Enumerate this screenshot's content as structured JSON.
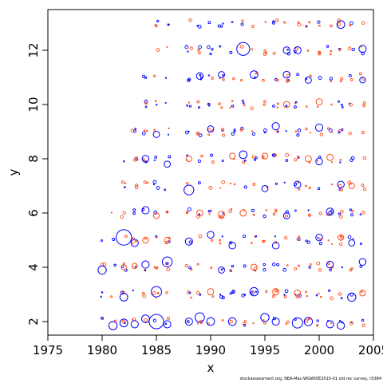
{
  "chart_data": {
    "type": "scatter",
    "title": "",
    "xlabel": "x",
    "ylabel": "y",
    "xlim": [
      1975,
      2005
    ],
    "ylim": [
      1.5,
      13.5
    ],
    "x_ticks": [
      1975,
      1980,
      1985,
      1990,
      1995,
      2000,
      2005
    ],
    "y_ticks": [
      2,
      4,
      6,
      8,
      10,
      12
    ],
    "grid": false,
    "legend": "none",
    "colors": {
      "positive": "#0000ff",
      "negative": "#ff4d1a"
    },
    "marker": "open circle, size proportional to residual magnitude",
    "series": [
      {
        "name": "",
        "color": "#0000ff",
        "points": [
          {
            "x": 1980,
            "y": 3.9,
            "s": 1.0
          },
          {
            "x": 1981,
            "y": 1.85,
            "s": 1.0
          },
          {
            "x": 1982,
            "y": 5.1,
            "s": 2.4
          },
          {
            "x": 1982,
            "y": 2.9,
            "s": 0.9
          },
          {
            "x": 1982,
            "y": 1.95,
            "s": 0.9
          },
          {
            "x": 1983,
            "y": 4.9,
            "s": 0.8
          },
          {
            "x": 1983,
            "y": 1.9,
            "s": 0.8
          },
          {
            "x": 1984,
            "y": 6.1,
            "s": 0.8
          },
          {
            "x": 1984,
            "y": 8.0,
            "s": 0.7
          },
          {
            "x": 1984,
            "y": 4.1,
            "s": 0.8
          },
          {
            "x": 1984,
            "y": 2.1,
            "s": 0.9
          },
          {
            "x": 1985,
            "y": 3.1,
            "s": 1.4
          },
          {
            "x": 1985,
            "y": 2.0,
            "s": 2.2
          },
          {
            "x": 1985,
            "y": 8.9,
            "s": 0.6
          },
          {
            "x": 1986,
            "y": 4.2,
            "s": 1.3
          },
          {
            "x": 1986,
            "y": 1.9,
            "s": 0.8
          },
          {
            "x": 1986,
            "y": 7.8,
            "s": 0.6
          },
          {
            "x": 1988,
            "y": 6.85,
            "s": 1.3
          },
          {
            "x": 1988,
            "y": 4.95,
            "s": 0.8
          },
          {
            "x": 1988,
            "y": 2.0,
            "s": 0.8
          },
          {
            "x": 1989,
            "y": 2.15,
            "s": 1.2
          },
          {
            "x": 1989,
            "y": 11.05,
            "s": 0.7
          },
          {
            "x": 1990,
            "y": 9.1,
            "s": 0.6
          },
          {
            "x": 1990,
            "y": 5.2,
            "s": 0.7
          },
          {
            "x": 1990,
            "y": 2.0,
            "s": 0.9
          },
          {
            "x": 1991,
            "y": 11.1,
            "s": 0.6
          },
          {
            "x": 1991,
            "y": 3.9,
            "s": 0.6
          },
          {
            "x": 1992,
            "y": 4.8,
            "s": 0.7
          },
          {
            "x": 1992,
            "y": 2.0,
            "s": 0.9
          },
          {
            "x": 1993,
            "y": 12.05,
            "s": 1.9
          },
          {
            "x": 1993,
            "y": 8.15,
            "s": 0.9
          },
          {
            "x": 1994,
            "y": 11.1,
            "s": 0.9
          },
          {
            "x": 1994,
            "y": 3.1,
            "s": 1.0
          },
          {
            "x": 1995,
            "y": 6.9,
            "s": 0.6
          },
          {
            "x": 1995,
            "y": 2.15,
            "s": 1.0
          },
          {
            "x": 1996,
            "y": 9.2,
            "s": 0.8
          },
          {
            "x": 1996,
            "y": 4.8,
            "s": 0.7
          },
          {
            "x": 1996,
            "y": 2.0,
            "s": 0.8
          },
          {
            "x": 1997,
            "y": 12.0,
            "s": 0.7
          },
          {
            "x": 1997,
            "y": 11.1,
            "s": 0.7
          },
          {
            "x": 1997,
            "y": 5.9,
            "s": 0.6
          },
          {
            "x": 1998,
            "y": 12.0,
            "s": 0.8
          },
          {
            "x": 1998,
            "y": 7.05,
            "s": 0.7
          },
          {
            "x": 1998,
            "y": 1.95,
            "s": 1.4
          },
          {
            "x": 1999,
            "y": 10.9,
            "s": 0.6
          },
          {
            "x": 1999,
            "y": 2.0,
            "s": 1.0
          },
          {
            "x": 2000,
            "y": 9.15,
            "s": 0.8
          },
          {
            "x": 2000,
            "y": 7.9,
            "s": 0.7
          },
          {
            "x": 2000,
            "y": 5.1,
            "s": 0.7
          },
          {
            "x": 2001,
            "y": 6.05,
            "s": 0.8
          },
          {
            "x": 2001,
            "y": 4.1,
            "s": 0.7
          },
          {
            "x": 2001,
            "y": 1.9,
            "s": 0.8
          },
          {
            "x": 2002,
            "y": 12.95,
            "s": 0.9
          },
          {
            "x": 2002,
            "y": 7.05,
            "s": 0.7
          },
          {
            "x": 2002,
            "y": 1.85,
            "s": 0.8
          },
          {
            "x": 2003,
            "y": 4.9,
            "s": 0.6
          },
          {
            "x": 2003,
            "y": 2.9,
            "s": 1.0
          },
          {
            "x": 2004,
            "y": 12.05,
            "s": 0.8
          },
          {
            "x": 2004,
            "y": 4.2,
            "s": 0.7
          },
          {
            "x": 2004,
            "y": 10.9,
            "s": 0.5
          }
        ]
      },
      {
        "name": "",
        "color": "#ff4d1a",
        "points": [
          {
            "x": 1982,
            "y": 4.0,
            "s": 0.4
          },
          {
            "x": 1983,
            "y": 4.05,
            "s": 0.4
          },
          {
            "x": 1984,
            "y": 5.0,
            "s": 0.5
          },
          {
            "x": 1985,
            "y": 5.9,
            "s": 0.5
          },
          {
            "x": 1986,
            "y": 5.0,
            "s": 0.5
          },
          {
            "x": 1988,
            "y": 8.0,
            "s": 0.5
          },
          {
            "x": 1989,
            "y": 6.0,
            "s": 0.6
          },
          {
            "x": 1990,
            "y": 3.1,
            "s": 0.6
          },
          {
            "x": 1991,
            "y": 5.95,
            "s": 0.6
          },
          {
            "x": 1992,
            "y": 8.1,
            "s": 0.5
          },
          {
            "x": 1993,
            "y": 6.0,
            "s": 0.6
          },
          {
            "x": 1994,
            "y": 4.0,
            "s": 0.6
          },
          {
            "x": 1995,
            "y": 8.1,
            "s": 0.5
          },
          {
            "x": 1996,
            "y": 3.1,
            "s": 0.6
          },
          {
            "x": 1997,
            "y": 10.0,
            "s": 0.6
          },
          {
            "x": 1998,
            "y": 3.05,
            "s": 0.6
          },
          {
            "x": 1999,
            "y": 8.0,
            "s": 0.6
          },
          {
            "x": 2000,
            "y": 10.1,
            "s": 0.6
          },
          {
            "x": 2001,
            "y": 8.05,
            "s": 0.6
          },
          {
            "x": 2002,
            "y": 5.1,
            "s": 0.5
          },
          {
            "x": 2003,
            "y": 7.0,
            "s": 0.5
          },
          {
            "x": 2004,
            "y": 3.05,
            "s": 0.5
          }
        ]
      }
    ],
    "grid_cells": {
      "x_from": 1980,
      "x_to": 2004,
      "y_min": 2,
      "y_max": 13
    }
  },
  "footer": "stockassessment.org, NEA-Mac-WGWIDE2015-V1  old  rec  survey,  r5384"
}
